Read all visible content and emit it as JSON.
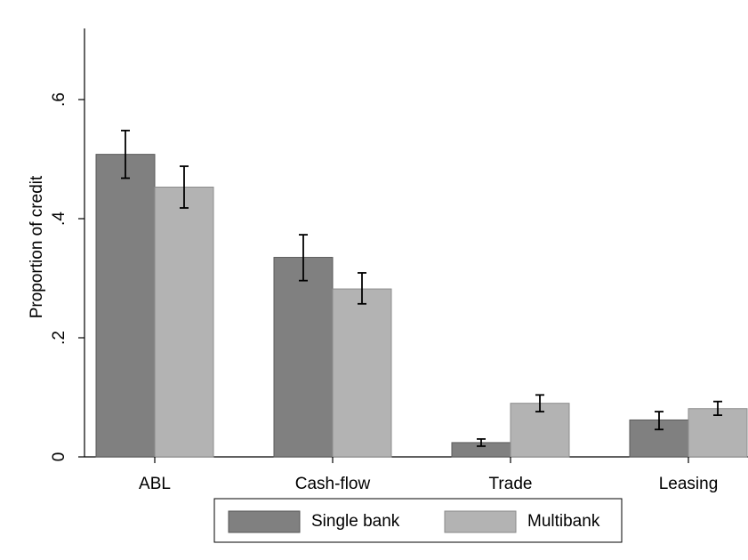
{
  "chart_data": {
    "type": "bar",
    "title": "",
    "xlabel": "",
    "ylabel": "Proportion of credit",
    "categories": [
      "ABL",
      "Cash-flow",
      "Trade",
      "Leasing"
    ],
    "series": [
      {
        "name": "Single bank",
        "color": "#808080",
        "values": [
          0.508,
          0.335,
          0.024,
          0.062
        ],
        "ci_low": [
          0.468,
          0.296,
          0.018,
          0.046
        ],
        "ci_high": [
          0.548,
          0.373,
          0.03,
          0.076
        ]
      },
      {
        "name": "Multibank",
        "color": "#b3b3b3",
        "values": [
          0.453,
          0.282,
          0.09,
          0.081
        ],
        "ci_low": [
          0.418,
          0.257,
          0.076,
          0.07
        ],
        "ci_high": [
          0.488,
          0.309,
          0.104,
          0.093
        ]
      }
    ],
    "yticks": [
      0,
      0.2,
      0.4,
      0.6
    ],
    "ytick_labels": [
      "0",
      ".2",
      ".4",
      ".6"
    ],
    "ylim": [
      0,
      0.72
    ],
    "grid": false,
    "legend_position": "bottom"
  }
}
